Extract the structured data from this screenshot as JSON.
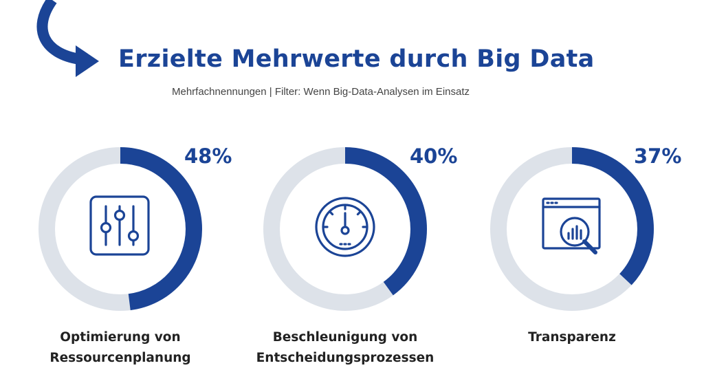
{
  "header": {
    "title": "Erzielte Mehrwerte durch Big Data",
    "subtitle": "Mehrfachnennungen | Filter: Wenn Big-Data-Analysen im Einsatz"
  },
  "colors": {
    "accent": "#1b4496",
    "track": "#dde2e9",
    "text": "#222222"
  },
  "chart_data": {
    "type": "donut",
    "categories": [
      "Optimierung von Ressourcenplanung",
      "Beschleunigung von Entscheidungsprozessen",
      "Transparenz"
    ],
    "values": [
      48,
      40,
      37
    ],
    "unit": "%",
    "max": 100,
    "items": [
      {
        "pct_label": "48%",
        "value": 48,
        "label_lines": [
          "Optimierung von",
          "Ressourcenplanung"
        ],
        "icon": "sliders-icon"
      },
      {
        "pct_label": "40%",
        "value": 40,
        "label_lines": [
          "Beschleunigung von",
          "Entscheidungsprozessen"
        ],
        "icon": "speedometer-icon"
      },
      {
        "pct_label": "37%",
        "value": 37,
        "label_lines": [
          "Transparenz"
        ],
        "icon": "analytics-magnifier-icon"
      }
    ]
  }
}
